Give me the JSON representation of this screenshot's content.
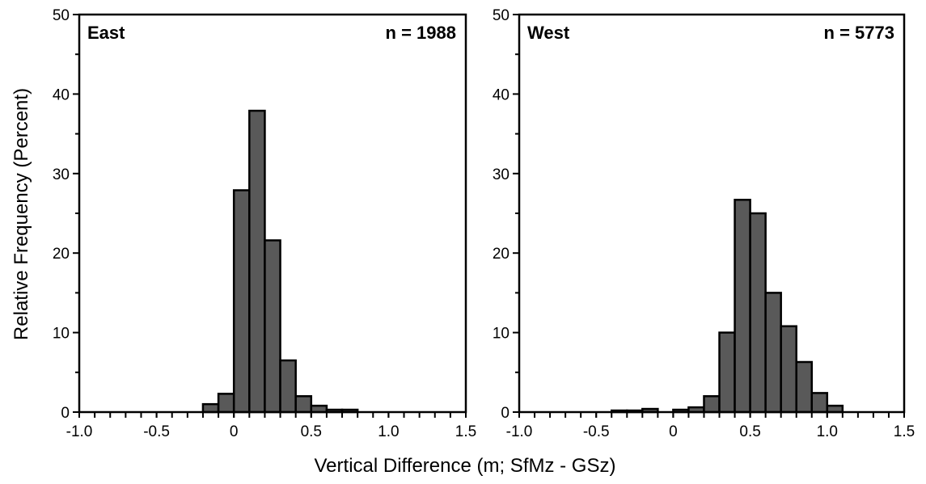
{
  "chart_data": {
    "type": "bar",
    "ylabel": "Relative Frequency (Percent)",
    "xlabel": "Vertical Difference (m; SfMz - GSz)",
    "bar_color": "#595959",
    "edge_color": "#000000",
    "grid": false,
    "bin_width": 0.1,
    "panels": [
      {
        "label": "East",
        "n_label": "n = 1988",
        "xlim": [
          -1.0,
          1.5
        ],
        "ylim": [
          0,
          50
        ],
        "xticks": [
          -1.0,
          -0.5,
          0,
          0.5,
          1.0,
          1.5
        ],
        "xtick_labels": [
          "-1.0",
          "-0.5",
          "0",
          "0.5",
          "1.0",
          "1.5"
        ],
        "yticks": [
          0,
          10,
          20,
          30,
          40,
          50
        ],
        "ytick_labels": [
          "0",
          "10",
          "20",
          "30",
          "40",
          "50"
        ],
        "bins": [
          -0.2,
          -0.1,
          0.0,
          0.1,
          0.2,
          0.3,
          0.4,
          0.5,
          0.6,
          0.7
        ],
        "values": [
          1.0,
          2.3,
          27.9,
          37.9,
          21.6,
          6.5,
          2.0,
          0.8,
          0.3,
          0.3
        ]
      },
      {
        "label": "West",
        "n_label": "n = 5773",
        "xlim": [
          -1.0,
          1.5
        ],
        "ylim": [
          0,
          50
        ],
        "xticks": [
          -1.0,
          -0.5,
          0,
          0.5,
          1.0,
          1.5
        ],
        "xtick_labels": [
          "-1.0",
          "-0.5",
          "0",
          "0.5",
          "1.0",
          "1.5"
        ],
        "yticks": [
          0,
          10,
          20,
          30,
          40,
          50
        ],
        "ytick_labels": [
          "0",
          "10",
          "20",
          "30",
          "40",
          "50"
        ],
        "bins": [
          -0.4,
          -0.3,
          -0.2,
          -0.1,
          0.0,
          0.1,
          0.2,
          0.3,
          0.4,
          0.5,
          0.6,
          0.7,
          0.8,
          0.9,
          1.0
        ],
        "values": [
          0.2,
          0.2,
          0.4,
          0.0,
          0.3,
          0.6,
          2.0,
          10.0,
          26.7,
          25.0,
          15.0,
          10.8,
          6.3,
          2.4,
          0.8
        ]
      }
    ]
  }
}
